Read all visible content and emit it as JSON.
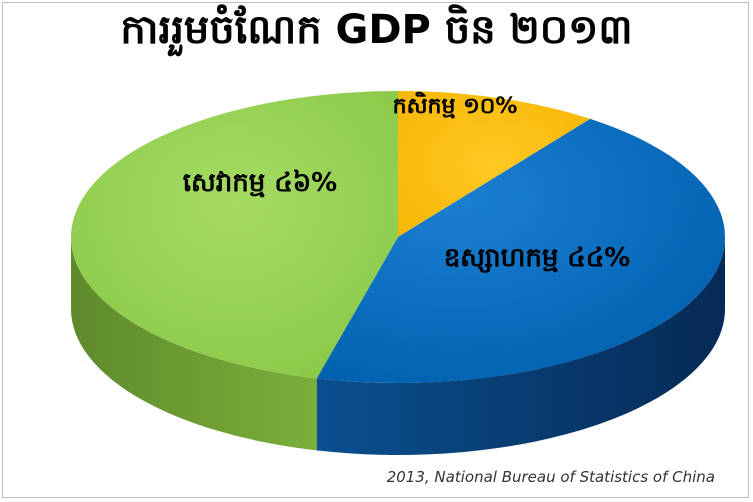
{
  "chart_data": {
    "type": "pie",
    "title": "ការរួមចំណែក GDP ចិន ២០១៣",
    "style": "3d",
    "slices": [
      {
        "label": "កសិកម្ម ១០%",
        "value": 10,
        "color": "#ffc000"
      },
      {
        "label": "ឧស្សាហកម្ម ៤៤%",
        "value": 44,
        "color": "#0070c0"
      },
      {
        "label": "សេវាកម្ម ៤៦%",
        "value": 46,
        "color": "#92d050"
      }
    ],
    "source": "2013, National Bureau of Statistics of China"
  }
}
